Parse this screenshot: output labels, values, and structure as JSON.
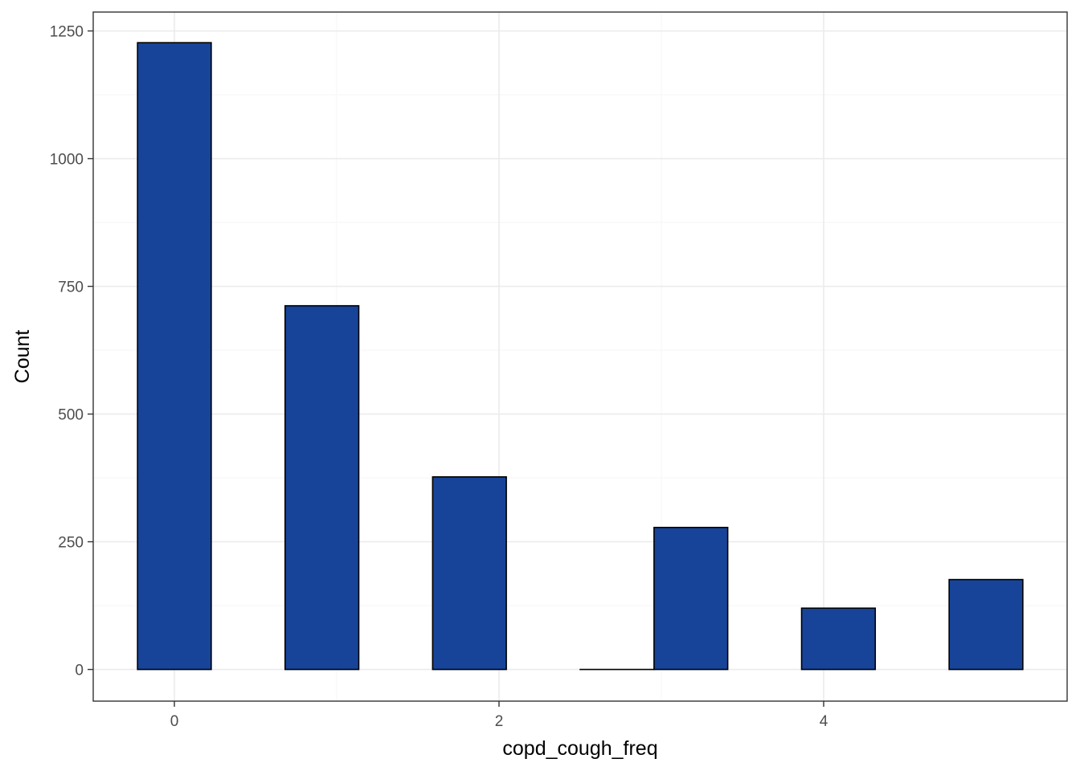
{
  "chart_data": {
    "type": "bar",
    "title": "",
    "xlabel": "copd_cough_freq",
    "ylabel": "Count",
    "bins": [
      {
        "x0": -0.227,
        "x1": 0.227,
        "count": 1227
      },
      {
        "x0": 0.682,
        "x1": 1.136,
        "count": 712
      },
      {
        "x0": 1.591,
        "x1": 2.045,
        "count": 377
      },
      {
        "x0": 2.5,
        "x1": 2.955,
        "count": 0
      },
      {
        "x0": 2.955,
        "x1": 3.409,
        "count": 278
      },
      {
        "x0": 3.864,
        "x1": 4.318,
        "count": 120
      },
      {
        "x0": 4.773,
        "x1": 5.227,
        "count": 176
      }
    ],
    "xlim": [
      -0.5,
      5.5
    ],
    "ylim": [
      -62,
      1287
    ],
    "x_ticks": [
      0,
      2,
      4
    ],
    "x_tick_labels": [
      "0",
      "2",
      "4"
    ],
    "y_ticks": [
      0,
      250,
      500,
      750,
      1000,
      1250
    ],
    "y_tick_labels": [
      "0",
      "250",
      "500",
      "750",
      "1000",
      "1250"
    ],
    "grid": true,
    "colors": {
      "bar_fill": "#174499",
      "bar_stroke": "#000000",
      "grid_major": "#ebebeb",
      "grid_minor": "#f5f5f5",
      "panel_border": "#333333"
    }
  }
}
